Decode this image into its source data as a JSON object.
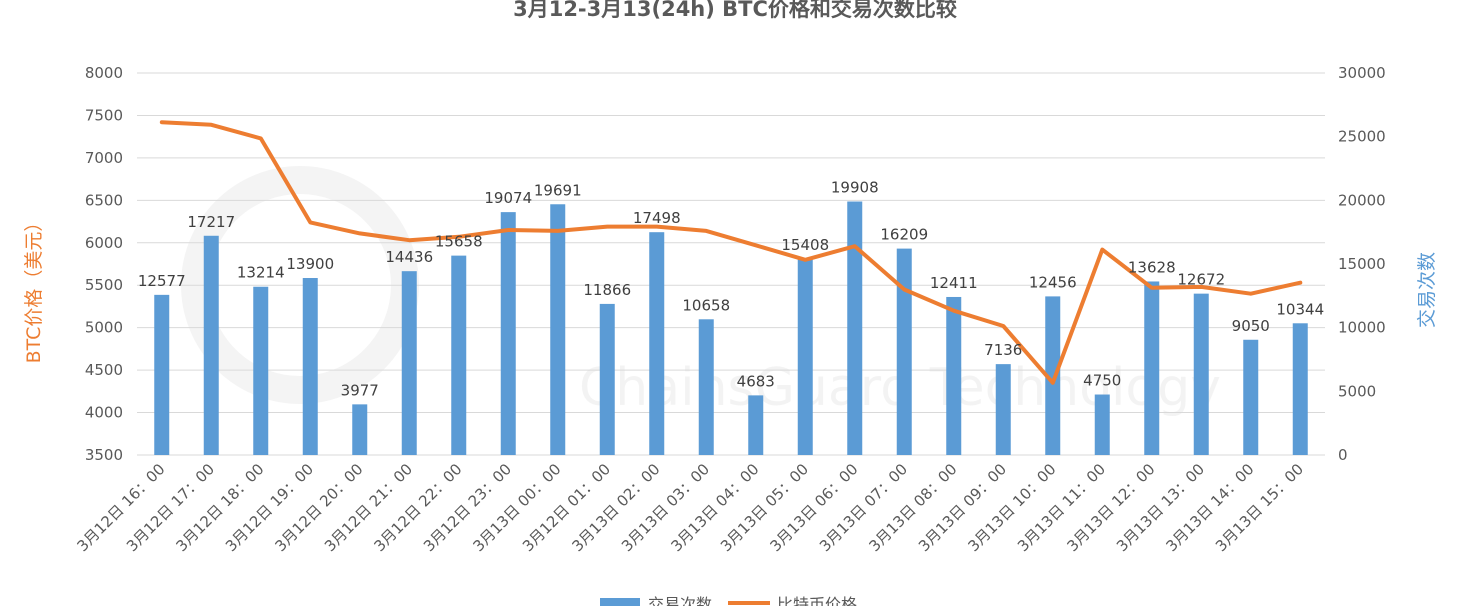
{
  "chart_data": {
    "type": "bar",
    "title": "3月12-3月13(24h) BTC价格和交易次数比较",
    "categories": [
      "3月12日 16：00",
      "3月12日 17：00",
      "3月12日 18：00",
      "3月12日 19：00",
      "3月12日 20：00",
      "3月12日 21：00",
      "3月12日 22：00",
      "3月12日 23：00",
      "3月13日 00：00",
      "3月12日 01：00",
      "3月13日 02：00",
      "3月13日 03：00",
      "3月13日 04：00",
      "3月13日 05：00",
      "3月13日 06：00",
      "3月13日 07：00",
      "3月13日 08：00",
      "3月13日 09：00",
      "3月13日 10：00",
      "3月13日 11：00",
      "3月13日 12：00",
      "3月13日 13：00",
      "3月13日 14：00",
      "3月13日 15：00"
    ],
    "series": [
      {
        "name": "交易次数",
        "type": "bar",
        "axis": "right",
        "color": "#5b9bd5",
        "values": [
          12577,
          17217,
          13214,
          13900,
          3977,
          14436,
          15658,
          19074,
          19691,
          11866,
          17498,
          10658,
          4683,
          15408,
          19908,
          16209,
          12411,
          7136,
          12456,
          4750,
          13628,
          12672,
          9050,
          10344
        ]
      },
      {
        "name": "比特币价格",
        "type": "line",
        "axis": "left",
        "color": "#ed7d31",
        "values": [
          7420,
          7390,
          7230,
          6240,
          6110,
          6030,
          6070,
          6150,
          6140,
          6190,
          6190,
          6140,
          5970,
          5800,
          5960,
          5450,
          5200,
          5020,
          4350,
          5920,
          5470,
          5480,
          5400,
          5530
        ]
      }
    ],
    "ylabel_left": "BTC价格（美元）",
    "ylabel_right": "交易次数",
    "ylim_left": [
      3500,
      8000
    ],
    "ylim_right": [
      0,
      30000
    ],
    "yticks_left": [
      3500,
      4000,
      4500,
      5000,
      5500,
      6000,
      6500,
      7000,
      7500,
      8000
    ],
    "yticks_right": [
      0,
      5000,
      10000,
      15000,
      20000,
      25000,
      30000
    ],
    "grid": true,
    "legend_position": "bottom",
    "watermark": "ChainsGuard Technology"
  }
}
